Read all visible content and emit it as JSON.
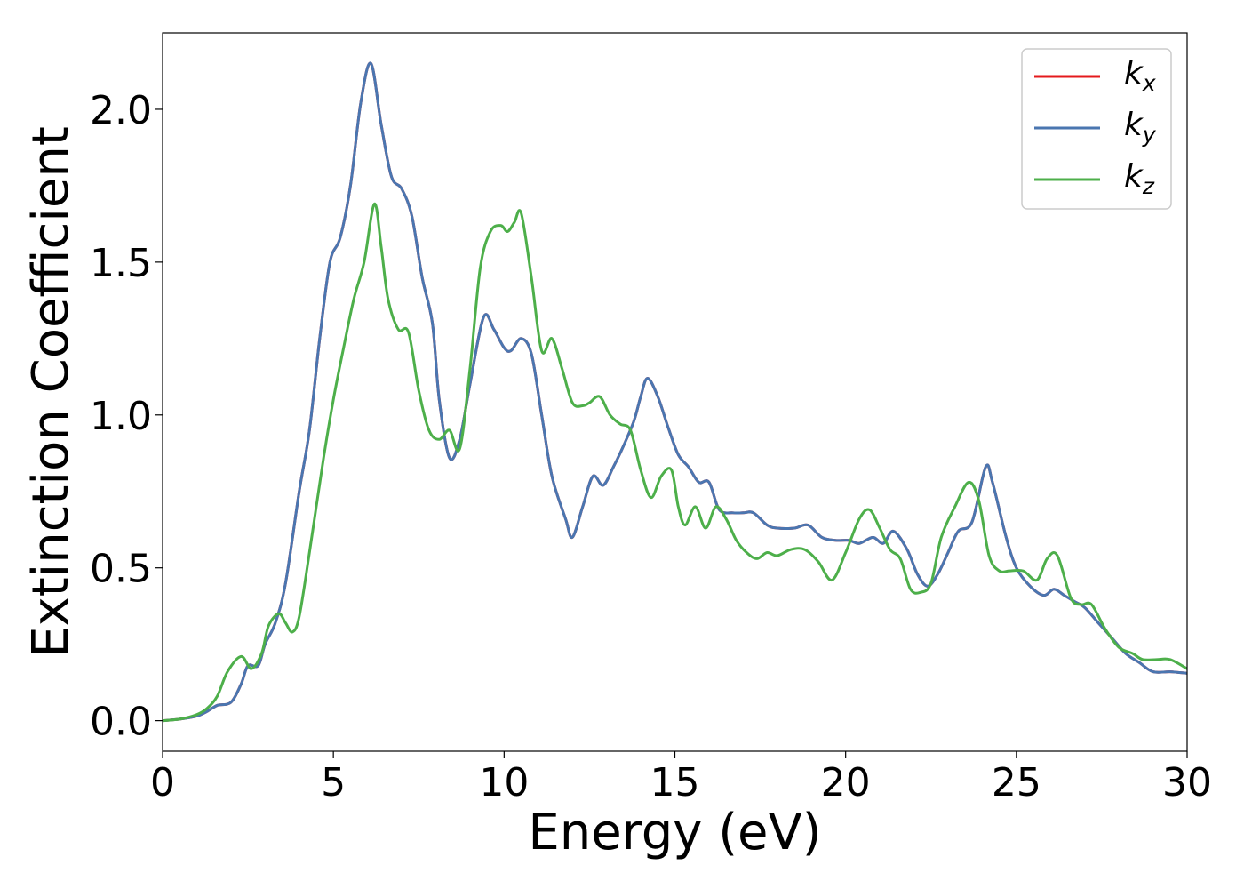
{
  "chart_data": {
    "type": "line",
    "title": "",
    "xlabel": "Energy (eV)",
    "ylabel": "Extinction Coefficient",
    "xlim": [
      0,
      30
    ],
    "ylim": [
      -0.1,
      2.25
    ],
    "xticks": [
      "0",
      "5",
      "10",
      "15",
      "20",
      "25",
      "30"
    ],
    "yticks": [
      "0.0",
      "0.5",
      "1.0",
      "1.5",
      "2.0"
    ],
    "grid": false,
    "legend_position": "top-right",
    "series": [
      {
        "name": "k_x",
        "legend_base": "k",
        "legend_sub": "x",
        "color": "#e41a1c",
        "points": [
          [
            0,
            0.0
          ],
          [
            0.5,
            0.005
          ],
          [
            1.0,
            0.015
          ],
          [
            1.3,
            0.03
          ],
          [
            1.6,
            0.05
          ],
          [
            2.0,
            0.06
          ],
          [
            2.3,
            0.12
          ],
          [
            2.5,
            0.18
          ],
          [
            2.8,
            0.18
          ],
          [
            3.0,
            0.25
          ],
          [
            3.3,
            0.32
          ],
          [
            3.6,
            0.45
          ],
          [
            4.0,
            0.75
          ],
          [
            4.3,
            0.95
          ],
          [
            4.6,
            1.25
          ],
          [
            4.9,
            1.5
          ],
          [
            5.2,
            1.58
          ],
          [
            5.5,
            1.75
          ],
          [
            5.8,
            2.02
          ],
          [
            6.1,
            2.15
          ],
          [
            6.4,
            1.95
          ],
          [
            6.7,
            1.78
          ],
          [
            7.0,
            1.74
          ],
          [
            7.3,
            1.65
          ],
          [
            7.6,
            1.45
          ],
          [
            7.9,
            1.3
          ],
          [
            8.1,
            1.05
          ],
          [
            8.4,
            0.86
          ],
          [
            8.7,
            0.92
          ],
          [
            9.0,
            1.1
          ],
          [
            9.4,
            1.32
          ],
          [
            9.7,
            1.28
          ],
          [
            10.0,
            1.22
          ],
          [
            10.2,
            1.21
          ],
          [
            10.5,
            1.25
          ],
          [
            10.8,
            1.2
          ],
          [
            11.1,
            1.0
          ],
          [
            11.4,
            0.8
          ],
          [
            11.8,
            0.66
          ],
          [
            12.0,
            0.6
          ],
          [
            12.3,
            0.7
          ],
          [
            12.6,
            0.8
          ],
          [
            12.9,
            0.77
          ],
          [
            13.2,
            0.83
          ],
          [
            13.5,
            0.9
          ],
          [
            13.8,
            0.98
          ],
          [
            14.0,
            1.06
          ],
          [
            14.2,
            1.12
          ],
          [
            14.5,
            1.06
          ],
          [
            14.8,
            0.96
          ],
          [
            15.1,
            0.87
          ],
          [
            15.4,
            0.83
          ],
          [
            15.7,
            0.78
          ],
          [
            16.0,
            0.78
          ],
          [
            16.3,
            0.69
          ],
          [
            16.7,
            0.68
          ],
          [
            17.0,
            0.68
          ],
          [
            17.3,
            0.68
          ],
          [
            17.7,
            0.64
          ],
          [
            18.0,
            0.63
          ],
          [
            18.5,
            0.63
          ],
          [
            18.9,
            0.64
          ],
          [
            19.3,
            0.6
          ],
          [
            19.7,
            0.59
          ],
          [
            20.1,
            0.59
          ],
          [
            20.4,
            0.58
          ],
          [
            20.8,
            0.6
          ],
          [
            21.1,
            0.58
          ],
          [
            21.4,
            0.62
          ],
          [
            21.8,
            0.56
          ],
          [
            22.1,
            0.48
          ],
          [
            22.4,
            0.44
          ],
          [
            22.7,
            0.48
          ],
          [
            23.0,
            0.55
          ],
          [
            23.3,
            0.62
          ],
          [
            23.7,
            0.65
          ],
          [
            24.1,
            0.83
          ],
          [
            24.3,
            0.78
          ],
          [
            24.7,
            0.6
          ],
          [
            25.0,
            0.5
          ],
          [
            25.4,
            0.44
          ],
          [
            25.8,
            0.41
          ],
          [
            26.1,
            0.43
          ],
          [
            26.4,
            0.41
          ],
          [
            26.7,
            0.39
          ],
          [
            27.0,
            0.37
          ],
          [
            27.4,
            0.32
          ],
          [
            27.8,
            0.27
          ],
          [
            28.2,
            0.22
          ],
          [
            28.6,
            0.19
          ],
          [
            29.0,
            0.16
          ],
          [
            29.5,
            0.16
          ],
          [
            30.0,
            0.155
          ]
        ]
      },
      {
        "name": "k_y",
        "legend_base": "k",
        "legend_sub": "y",
        "color": "#4a76b0",
        "points": [
          [
            0,
            0.0
          ],
          [
            0.5,
            0.005
          ],
          [
            1.0,
            0.015
          ],
          [
            1.3,
            0.03
          ],
          [
            1.6,
            0.05
          ],
          [
            2.0,
            0.06
          ],
          [
            2.3,
            0.12
          ],
          [
            2.5,
            0.18
          ],
          [
            2.8,
            0.18
          ],
          [
            3.0,
            0.25
          ],
          [
            3.3,
            0.32
          ],
          [
            3.6,
            0.45
          ],
          [
            4.0,
            0.75
          ],
          [
            4.3,
            0.95
          ],
          [
            4.6,
            1.25
          ],
          [
            4.9,
            1.5
          ],
          [
            5.2,
            1.58
          ],
          [
            5.5,
            1.75
          ],
          [
            5.8,
            2.02
          ],
          [
            6.1,
            2.15
          ],
          [
            6.4,
            1.95
          ],
          [
            6.7,
            1.78
          ],
          [
            7.0,
            1.74
          ],
          [
            7.3,
            1.65
          ],
          [
            7.6,
            1.45
          ],
          [
            7.9,
            1.3
          ],
          [
            8.1,
            1.05
          ],
          [
            8.4,
            0.86
          ],
          [
            8.7,
            0.92
          ],
          [
            9.0,
            1.1
          ],
          [
            9.4,
            1.32
          ],
          [
            9.7,
            1.28
          ],
          [
            10.0,
            1.22
          ],
          [
            10.2,
            1.21
          ],
          [
            10.5,
            1.25
          ],
          [
            10.8,
            1.2
          ],
          [
            11.1,
            1.0
          ],
          [
            11.4,
            0.8
          ],
          [
            11.8,
            0.66
          ],
          [
            12.0,
            0.6
          ],
          [
            12.3,
            0.7
          ],
          [
            12.6,
            0.8
          ],
          [
            12.9,
            0.77
          ],
          [
            13.2,
            0.83
          ],
          [
            13.5,
            0.9
          ],
          [
            13.8,
            0.98
          ],
          [
            14.0,
            1.06
          ],
          [
            14.2,
            1.12
          ],
          [
            14.5,
            1.06
          ],
          [
            14.8,
            0.96
          ],
          [
            15.1,
            0.87
          ],
          [
            15.4,
            0.83
          ],
          [
            15.7,
            0.78
          ],
          [
            16.0,
            0.78
          ],
          [
            16.3,
            0.69
          ],
          [
            16.7,
            0.68
          ],
          [
            17.0,
            0.68
          ],
          [
            17.3,
            0.68
          ],
          [
            17.7,
            0.64
          ],
          [
            18.0,
            0.63
          ],
          [
            18.5,
            0.63
          ],
          [
            18.9,
            0.64
          ],
          [
            19.3,
            0.6
          ],
          [
            19.7,
            0.59
          ],
          [
            20.1,
            0.59
          ],
          [
            20.4,
            0.58
          ],
          [
            20.8,
            0.6
          ],
          [
            21.1,
            0.58
          ],
          [
            21.4,
            0.62
          ],
          [
            21.8,
            0.56
          ],
          [
            22.1,
            0.48
          ],
          [
            22.4,
            0.44
          ],
          [
            22.7,
            0.48
          ],
          [
            23.0,
            0.55
          ],
          [
            23.3,
            0.62
          ],
          [
            23.7,
            0.65
          ],
          [
            24.1,
            0.83
          ],
          [
            24.3,
            0.78
          ],
          [
            24.7,
            0.6
          ],
          [
            25.0,
            0.5
          ],
          [
            25.4,
            0.44
          ],
          [
            25.8,
            0.41
          ],
          [
            26.1,
            0.43
          ],
          [
            26.4,
            0.41
          ],
          [
            26.7,
            0.39
          ],
          [
            27.0,
            0.37
          ],
          [
            27.4,
            0.32
          ],
          [
            27.8,
            0.27
          ],
          [
            28.2,
            0.22
          ],
          [
            28.6,
            0.19
          ],
          [
            29.0,
            0.16
          ],
          [
            29.5,
            0.16
          ],
          [
            30.0,
            0.155
          ]
        ]
      },
      {
        "name": "k_z",
        "legend_base": "k",
        "legend_sub": "z",
        "color": "#4daf4a",
        "points": [
          [
            0,
            0.0
          ],
          [
            0.5,
            0.005
          ],
          [
            1.0,
            0.02
          ],
          [
            1.3,
            0.04
          ],
          [
            1.6,
            0.08
          ],
          [
            1.9,
            0.16
          ],
          [
            2.3,
            0.21
          ],
          [
            2.6,
            0.17
          ],
          [
            2.9,
            0.22
          ],
          [
            3.1,
            0.31
          ],
          [
            3.4,
            0.35
          ],
          [
            3.6,
            0.32
          ],
          [
            3.8,
            0.29
          ],
          [
            4.0,
            0.34
          ],
          [
            4.3,
            0.55
          ],
          [
            4.7,
            0.85
          ],
          [
            5.0,
            1.05
          ],
          [
            5.3,
            1.22
          ],
          [
            5.6,
            1.38
          ],
          [
            5.9,
            1.5
          ],
          [
            6.2,
            1.69
          ],
          [
            6.4,
            1.55
          ],
          [
            6.6,
            1.38
          ],
          [
            6.9,
            1.28
          ],
          [
            7.2,
            1.27
          ],
          [
            7.5,
            1.08
          ],
          [
            7.8,
            0.95
          ],
          [
            8.1,
            0.92
          ],
          [
            8.4,
            0.95
          ],
          [
            8.7,
            0.89
          ],
          [
            9.0,
            1.15
          ],
          [
            9.3,
            1.48
          ],
          [
            9.6,
            1.6
          ],
          [
            9.9,
            1.62
          ],
          [
            10.1,
            1.6
          ],
          [
            10.3,
            1.63
          ],
          [
            10.5,
            1.66
          ],
          [
            10.8,
            1.45
          ],
          [
            11.1,
            1.21
          ],
          [
            11.4,
            1.25
          ],
          [
            11.7,
            1.15
          ],
          [
            12.0,
            1.04
          ],
          [
            12.3,
            1.03
          ],
          [
            12.5,
            1.04
          ],
          [
            12.8,
            1.06
          ],
          [
            13.1,
            1.0
          ],
          [
            13.4,
            0.97
          ],
          [
            13.7,
            0.95
          ],
          [
            14.0,
            0.82
          ],
          [
            14.3,
            0.73
          ],
          [
            14.6,
            0.8
          ],
          [
            14.9,
            0.82
          ],
          [
            15.1,
            0.7
          ],
          [
            15.3,
            0.64
          ],
          [
            15.6,
            0.7
          ],
          [
            15.9,
            0.63
          ],
          [
            16.2,
            0.7
          ],
          [
            16.5,
            0.66
          ],
          [
            16.8,
            0.59
          ],
          [
            17.1,
            0.55
          ],
          [
            17.4,
            0.53
          ],
          [
            17.7,
            0.55
          ],
          [
            18.0,
            0.54
          ],
          [
            18.4,
            0.56
          ],
          [
            18.8,
            0.56
          ],
          [
            19.2,
            0.52
          ],
          [
            19.6,
            0.46
          ],
          [
            20.0,
            0.55
          ],
          [
            20.4,
            0.66
          ],
          [
            20.7,
            0.69
          ],
          [
            21.0,
            0.63
          ],
          [
            21.3,
            0.56
          ],
          [
            21.6,
            0.53
          ],
          [
            21.9,
            0.43
          ],
          [
            22.2,
            0.42
          ],
          [
            22.5,
            0.45
          ],
          [
            22.8,
            0.6
          ],
          [
            23.2,
            0.7
          ],
          [
            23.6,
            0.78
          ],
          [
            23.9,
            0.72
          ],
          [
            24.2,
            0.54
          ],
          [
            24.5,
            0.49
          ],
          [
            24.8,
            0.49
          ],
          [
            25.2,
            0.49
          ],
          [
            25.6,
            0.46
          ],
          [
            25.9,
            0.53
          ],
          [
            26.2,
            0.54
          ],
          [
            26.6,
            0.4
          ],
          [
            26.9,
            0.38
          ],
          [
            27.2,
            0.38
          ],
          [
            27.6,
            0.3
          ],
          [
            28.0,
            0.24
          ],
          [
            28.4,
            0.22
          ],
          [
            28.7,
            0.2
          ],
          [
            29.1,
            0.2
          ],
          [
            29.5,
            0.2
          ],
          [
            30.0,
            0.17
          ]
        ]
      }
    ]
  }
}
